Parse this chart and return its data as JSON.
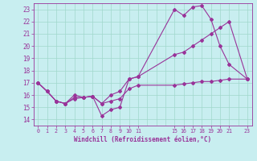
{
  "xlabel": "Windchill (Refroidissement éolien,°C)",
  "xlim": [
    -0.5,
    23.5
  ],
  "ylim": [
    13.5,
    23.5
  ],
  "yticks": [
    14,
    15,
    16,
    17,
    18,
    19,
    20,
    21,
    22,
    23
  ],
  "xtick_positions": [
    0,
    1,
    2,
    3,
    4,
    5,
    6,
    7,
    8,
    9,
    10,
    11,
    15,
    16,
    17,
    18,
    19,
    20,
    21,
    23
  ],
  "xtick_labels": [
    "0",
    "1",
    "2",
    "3",
    "4",
    "5",
    "6",
    "7",
    "8",
    "9",
    "10",
    "11",
    "15",
    "16",
    "17",
    "18",
    "19",
    "20",
    "21",
    "23"
  ],
  "bg_color": "#c8eef0",
  "grid_color": "#a0d8cc",
  "line_color": "#993399",
  "lines": [
    {
      "x": [
        0,
        1,
        2,
        3,
        4,
        5,
        6,
        7,
        8,
        9,
        10,
        11,
        15,
        16,
        17,
        18,
        19,
        20,
        21,
        23
      ],
      "y": [
        17.0,
        16.3,
        15.5,
        15.3,
        16.0,
        15.8,
        15.9,
        14.3,
        14.8,
        15.0,
        17.3,
        17.5,
        23.0,
        22.5,
        23.2,
        23.3,
        22.2,
        20.0,
        18.5,
        17.3
      ]
    },
    {
      "x": [
        0,
        1,
        2,
        3,
        4,
        5,
        6,
        7,
        8,
        9,
        10,
        11,
        15,
        16,
        17,
        18,
        19,
        20,
        21,
        23
      ],
      "y": [
        17.0,
        16.3,
        15.5,
        15.3,
        15.8,
        15.8,
        15.9,
        15.3,
        16.0,
        16.3,
        17.3,
        17.5,
        19.3,
        19.5,
        20.0,
        20.5,
        21.0,
        21.5,
        22.0,
        17.3
      ]
    },
    {
      "x": [
        0,
        1,
        2,
        3,
        4,
        5,
        6,
        7,
        8,
        9,
        10,
        11,
        15,
        16,
        17,
        18,
        19,
        20,
        21,
        23
      ],
      "y": [
        17.0,
        16.3,
        15.5,
        15.3,
        15.7,
        15.8,
        15.9,
        15.3,
        15.5,
        15.7,
        16.5,
        16.8,
        16.8,
        16.9,
        17.0,
        17.1,
        17.1,
        17.2,
        17.3,
        17.3
      ]
    }
  ],
  "marker": "D",
  "markersize": 2.0,
  "linewidth": 0.8,
  "grid_xticks": [
    0,
    1,
    2,
    3,
    4,
    5,
    6,
    7,
    8,
    9,
    10,
    11,
    12,
    13,
    14,
    15,
    16,
    17,
    18,
    19,
    20,
    21,
    22,
    23
  ]
}
